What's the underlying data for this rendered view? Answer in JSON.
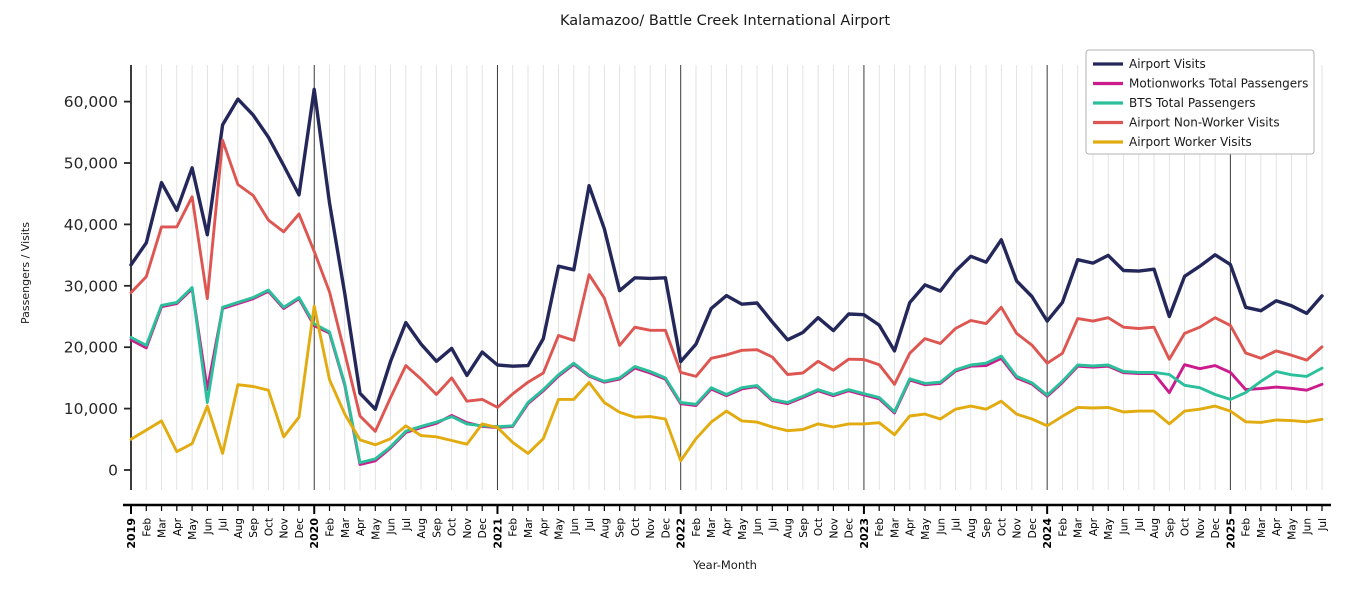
{
  "chart_data": {
    "type": "line",
    "title": "Kalamazoo/ Battle Creek International Airport",
    "xlabel": "Year-Month",
    "ylabel": "Passengers / Visits",
    "grid": "vertical-monthly, dark line at each January",
    "legend_position": "top-right",
    "ylim": [
      0,
      65000
    ],
    "yticks": [
      0,
      10000,
      20000,
      30000,
      40000,
      50000,
      60000
    ],
    "x_labels": [
      "2019",
      "Feb",
      "Mar",
      "Apr",
      "May",
      "Jun",
      "Jul",
      "Aug",
      "Sep",
      "Oct",
      "Nov",
      "Dec",
      "2020",
      "Feb",
      "Mar",
      "Apr",
      "May",
      "Jun",
      "Jul",
      "Aug",
      "Sep",
      "Oct",
      "Nov",
      "Dec",
      "2021",
      "Feb",
      "Mar",
      "Apr",
      "May",
      "Jun",
      "Jul",
      "Aug",
      "Sep",
      "Oct",
      "Nov",
      "Dec",
      "2022",
      "Feb",
      "Mar",
      "Apr",
      "May",
      "Jun",
      "Jul",
      "Aug",
      "Sep",
      "Oct",
      "Nov",
      "Dec",
      "2023",
      "Feb",
      "Mar",
      "Apr",
      "May",
      "Jun",
      "Jul",
      "Aug",
      "Sep",
      "Oct",
      "Nov",
      "Dec",
      "2024",
      "Feb",
      "Mar",
      "Apr",
      "May",
      "Jun",
      "Jul",
      "Aug",
      "Sep",
      "Oct",
      "Nov",
      "Dec",
      "2025",
      "Feb",
      "Mar",
      "Apr",
      "May",
      "Jun",
      "Jul"
    ],
    "series": [
      {
        "name": "Airport Visits",
        "color": "#242759",
        "values": [
          33400,
          37000,
          46800,
          42300,
          49200,
          38300,
          56200,
          60400,
          57800,
          54200,
          49600,
          44800,
          62000,
          43500,
          28700,
          12500,
          9900,
          17700,
          24000,
          20500,
          17700,
          19800,
          15400,
          19200,
          17100,
          16900,
          17000,
          21400,
          33200,
          32600,
          46300,
          39300,
          29200,
          31300,
          31200,
          31300,
          17650,
          20500,
          26300,
          28400,
          27000,
          27200,
          24100,
          21200,
          22400,
          24800,
          22700,
          25400,
          25300,
          23600,
          19400,
          27250,
          30150,
          29150,
          32400,
          34800,
          33850,
          37500,
          30800,
          28250,
          24250,
          27300,
          34250,
          33700,
          34950,
          32500,
          32400,
          32700,
          25000,
          31550,
          33200,
          35050,
          33450,
          26500,
          25950,
          27550,
          26750,
          25500,
          28350
        ]
      },
      {
        "name": "Motionworks Total Passengers",
        "color": "#cb1b8d",
        "values": [
          21200,
          19900,
          26600,
          27100,
          29500,
          13100,
          26300,
          27100,
          27900,
          29100,
          26300,
          27900,
          23500,
          22300,
          13800,
          900,
          1500,
          3600,
          6100,
          6900,
          7600,
          8900,
          7700,
          7100,
          6900,
          7100,
          10800,
          12900,
          15300,
          17200,
          15300,
          14300,
          14800,
          16600,
          15800,
          14800,
          10800,
          10500,
          13200,
          12100,
          13200,
          13600,
          11300,
          10800,
          11800,
          12900,
          12100,
          12900,
          12250,
          11600,
          9300,
          14650,
          13900,
          14100,
          16100,
          16900,
          17000,
          18200,
          15000,
          14000,
          12000,
          14250,
          16900,
          16750,
          16900,
          15850,
          15700,
          15700,
          12600,
          17150,
          16500,
          17000,
          15900,
          13100,
          13250,
          13500,
          13300,
          13000,
          13950
        ]
      },
      {
        "name": "BTS Total Passengers",
        "color": "#2bbf9b",
        "values": [
          21600,
          20300,
          26800,
          27300,
          29700,
          11000,
          26500,
          27300,
          28100,
          29300,
          26500,
          28100,
          23800,
          22500,
          14000,
          1200,
          1800,
          3800,
          6300,
          7100,
          7800,
          8700,
          7500,
          7200,
          7050,
          7200,
          11000,
          13100,
          15500,
          17400,
          15400,
          14450,
          15000,
          16850,
          16050,
          15000,
          11000,
          10700,
          13400,
          12300,
          13400,
          13750,
          11500,
          11000,
          12000,
          13100,
          12300,
          13100,
          12450,
          11800,
          9500,
          14850,
          14100,
          14300,
          16300,
          17100,
          17400,
          18550,
          15250,
          14200,
          12200,
          14450,
          17100,
          16950,
          17100,
          16050,
          15900,
          15900,
          15550,
          13800,
          13400,
          12300,
          11500,
          12600,
          14450,
          16050,
          15500,
          15250,
          16600
        ]
      },
      {
        "name": "Airport Non-Worker Visits",
        "color": "#dd5651",
        "values": [
          28900,
          31500,
          39600,
          39600,
          44500,
          27900,
          53700,
          46500,
          44700,
          40700,
          38800,
          41700,
          35600,
          29000,
          19000,
          8800,
          6300,
          11800,
          17000,
          14800,
          12300,
          15000,
          11200,
          11500,
          10200,
          12400,
          14300,
          15800,
          21900,
          21100,
          31800,
          28000,
          20300,
          23250,
          22750,
          22750,
          15900,
          15250,
          18200,
          18750,
          19500,
          19600,
          18400,
          15550,
          15800,
          17700,
          16250,
          18050,
          18000,
          17150,
          13950,
          19000,
          21400,
          20600,
          23050,
          24350,
          23850,
          26500,
          22250,
          20350,
          17400,
          19000,
          24650,
          24250,
          24800,
          23250,
          23050,
          23250,
          18050,
          22250,
          23250,
          24800,
          23550,
          19050,
          18200,
          19400,
          18700,
          17900,
          20050
        ]
      },
      {
        "name": "Airport Worker Visits",
        "color": "#e2ab10",
        "values": [
          5000,
          6500,
          8000,
          3000,
          4300,
          10400,
          2700,
          13900,
          13600,
          13000,
          5400,
          8600,
          26700,
          14700,
          9100,
          4900,
          4100,
          5100,
          7200,
          5600,
          5400,
          4800,
          4200,
          7500,
          6900,
          4500,
          2700,
          5100,
          11500,
          11500,
          14250,
          11000,
          9400,
          8600,
          8700,
          8300,
          1500,
          5100,
          7800,
          9600,
          8000,
          7800,
          7000,
          6400,
          6600,
          7500,
          7000,
          7500,
          7500,
          7700,
          5750,
          8800,
          9100,
          8300,
          9900,
          10400,
          9900,
          11200,
          9100,
          8300,
          7200,
          8750,
          10200,
          10100,
          10200,
          9450,
          9600,
          9600,
          7500,
          9600,
          9900,
          10400,
          9600,
          7850,
          7750,
          8150,
          8050,
          7850,
          8250
        ]
      }
    ]
  }
}
